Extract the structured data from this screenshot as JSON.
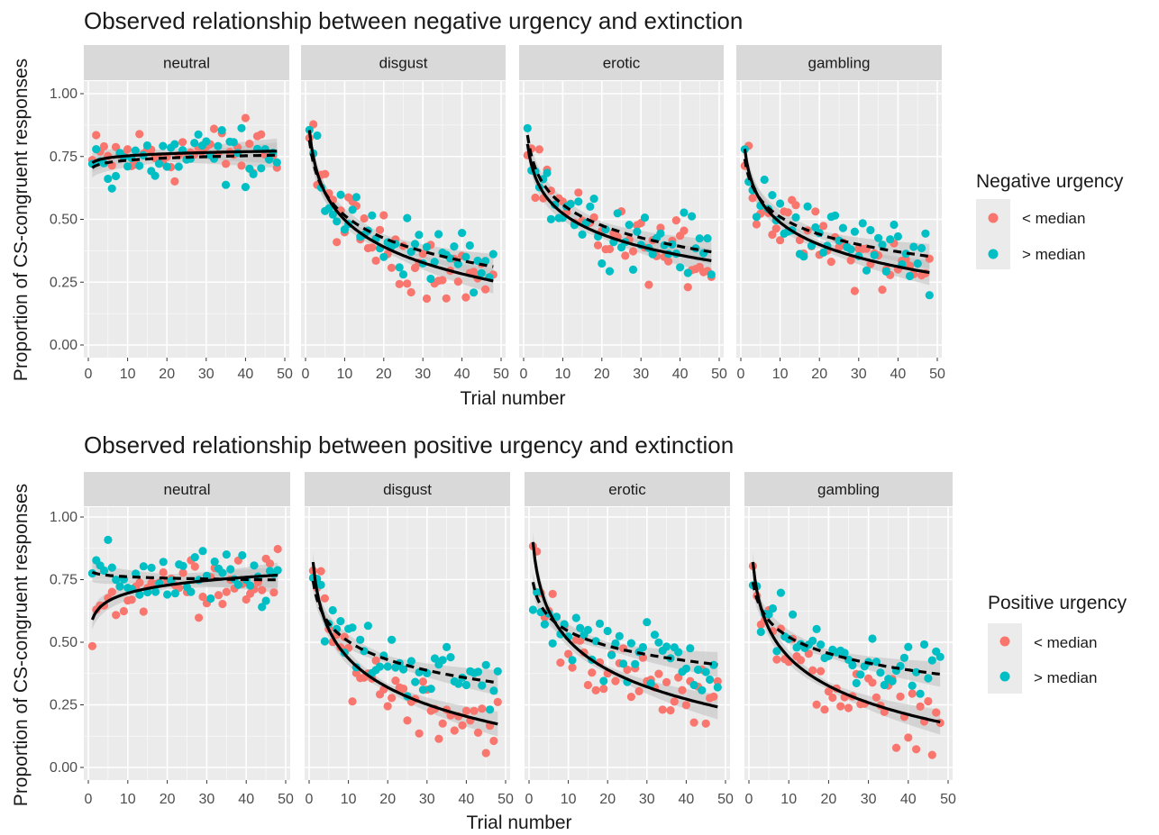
{
  "colors": {
    "panel_bg": "#EBEBEB",
    "strip_bg": "#D9D9D9",
    "grid": "#FFFFFF",
    "below_median": "#F8766D",
    "above_median": "#00BFC4",
    "fit_line": "#000000",
    "ribbon": "#BFBFBF"
  },
  "chart_data": [
    {
      "type": "scatter",
      "title": "Observed relationship between negative urgency and extinction",
      "xlabel": "Trial number",
      "ylabel": "Proportion of CS-congruent responses",
      "xlim": [
        0,
        50
      ],
      "ylim": [
        0,
        1
      ],
      "x_ticks": [
        "0",
        "10",
        "20",
        "30",
        "40",
        "50"
      ],
      "y_ticks": [
        "0.00",
        "0.25",
        "0.50",
        "0.75",
        "1.00"
      ],
      "grid": true,
      "legend": {
        "title": "Negative urgency",
        "position": "right",
        "items": [
          {
            "label": "< median",
            "color_key": "below_median"
          },
          {
            "label": "> median",
            "color_key": "above_median"
          }
        ]
      },
      "facets": [
        {
          "label": "neutral",
          "below_fit": {
            "a": 0.725,
            "b": 0.012
          },
          "above_fit": {
            "a": 0.705,
            "b": 0.013
          }
        },
        {
          "label": "disgust",
          "below_fit": {
            "a": 0.855,
            "b": -0.155
          },
          "above_fit": {
            "a": 0.815,
            "b": -0.13
          }
        },
        {
          "label": "erotic",
          "below_fit": {
            "a": 0.8,
            "b": -0.12
          },
          "above_fit": {
            "a": 0.835,
            "b": -0.12
          }
        },
        {
          "label": "gambling",
          "below_fit": {
            "a": 0.78,
            "b": -0.127
          },
          "above_fit": {
            "a": 0.74,
            "b": -0.1
          }
        }
      ]
    },
    {
      "type": "scatter",
      "title": "Observed relationship between positive urgency and extinction",
      "xlabel": "Trial number",
      "ylabel": "Proportion of CS-congruent responses",
      "xlim": [
        0,
        50
      ],
      "ylim": [
        0,
        1
      ],
      "x_ticks": [
        "0",
        "10",
        "20",
        "30",
        "40",
        "50"
      ],
      "y_ticks": [
        "0.00",
        "0.25",
        "0.50",
        "0.75",
        "1.00"
      ],
      "grid": true,
      "legend": {
        "title": "Positive urgency",
        "position": "right",
        "items": [
          {
            "label": "< median",
            "color_key": "below_median"
          },
          {
            "label": "> median",
            "color_key": "above_median"
          }
        ]
      },
      "facets": [
        {
          "label": "neutral",
          "below_fit": {
            "a": 0.59,
            "b": 0.046
          },
          "above_fit": {
            "a": 0.78,
            "b": -0.008
          }
        },
        {
          "label": "disgust",
          "below_fit": {
            "a": 0.82,
            "b": -0.167
          },
          "above_fit": {
            "a": 0.745,
            "b": -0.105
          }
        },
        {
          "label": "erotic",
          "below_fit": {
            "a": 0.9,
            "b": -0.17
          },
          "above_fit": {
            "a": 0.74,
            "b": -0.085
          }
        },
        {
          "label": "gambling",
          "below_fit": {
            "a": 0.82,
            "b": -0.165
          },
          "above_fit": {
            "a": 0.74,
            "b": -0.095
          }
        }
      ]
    }
  ]
}
